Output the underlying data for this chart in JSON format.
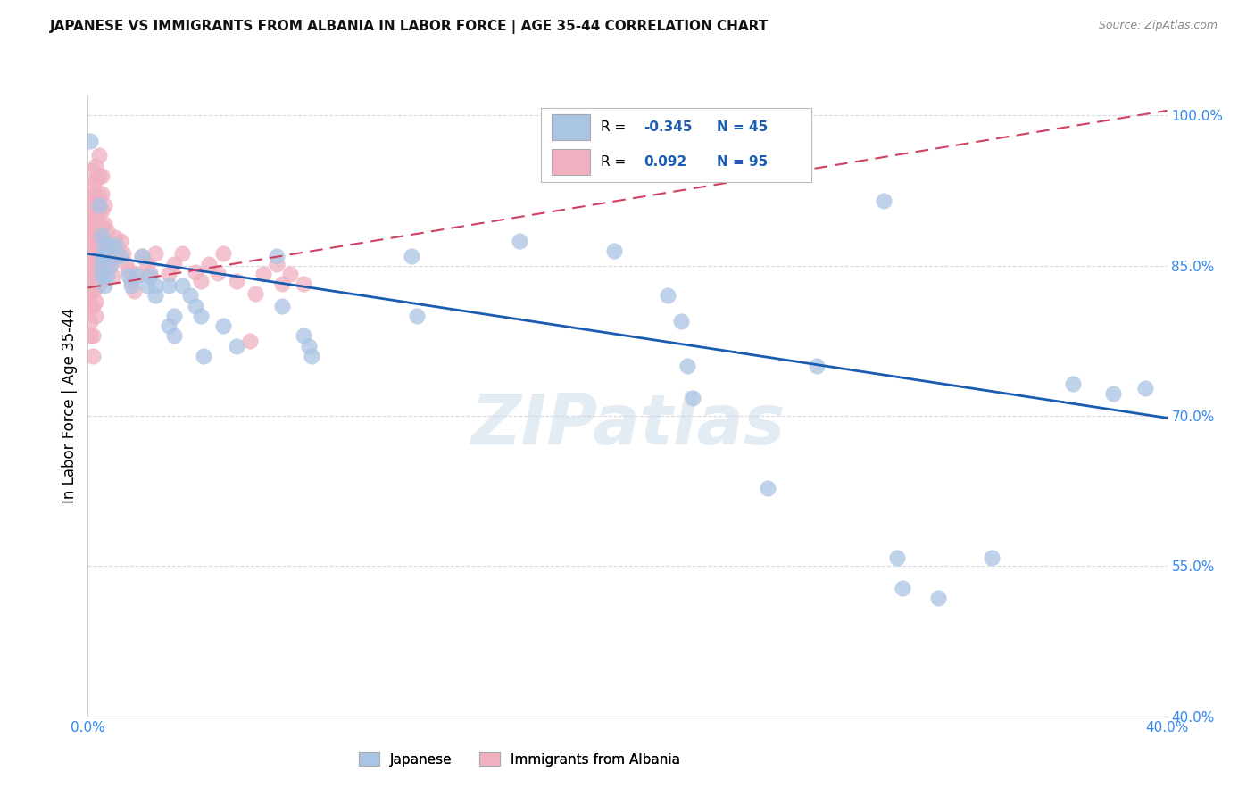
{
  "title": "JAPANESE VS IMMIGRANTS FROM ALBANIA IN LABOR FORCE | AGE 35-44 CORRELATION CHART",
  "source": "Source: ZipAtlas.com",
  "ylabel": "In Labor Force | Age 35-44",
  "xlim": [
    0.0,
    0.4
  ],
  "ylim": [
    0.4,
    1.02
  ],
  "yticks": [
    0.4,
    0.55,
    0.7,
    0.85,
    1.0
  ],
  "background_color": "#ffffff",
  "grid_color": "#d8d8e8",
  "japanese_color": "#aac4e4",
  "albania_color": "#f0b0c0",
  "japanese_line_color": "#1a5cb0",
  "albania_line_color": "#d04060",
  "jp_line": [
    [
      0.0,
      0.862
    ],
    [
      0.4,
      0.698
    ]
  ],
  "al_line": [
    [
      0.0,
      0.828
    ],
    [
      0.4,
      1.005
    ]
  ],
  "japanese_points": [
    [
      0.001,
      0.975
    ],
    [
      0.004,
      0.91
    ],
    [
      0.005,
      0.88
    ],
    [
      0.005,
      0.86
    ],
    [
      0.005,
      0.84
    ],
    [
      0.005,
      0.85
    ],
    [
      0.006,
      0.86
    ],
    [
      0.006,
      0.87
    ],
    [
      0.006,
      0.83
    ],
    [
      0.007,
      0.84
    ],
    [
      0.008,
      0.85
    ],
    [
      0.008,
      0.87
    ],
    [
      0.01,
      0.87
    ],
    [
      0.012,
      0.86
    ],
    [
      0.015,
      0.84
    ],
    [
      0.016,
      0.83
    ],
    [
      0.018,
      0.84
    ],
    [
      0.02,
      0.86
    ],
    [
      0.022,
      0.83
    ],
    [
      0.023,
      0.84
    ],
    [
      0.025,
      0.82
    ],
    [
      0.025,
      0.83
    ],
    [
      0.03,
      0.83
    ],
    [
      0.03,
      0.79
    ],
    [
      0.032,
      0.78
    ],
    [
      0.032,
      0.8
    ],
    [
      0.035,
      0.83
    ],
    [
      0.038,
      0.82
    ],
    [
      0.04,
      0.81
    ],
    [
      0.042,
      0.8
    ],
    [
      0.043,
      0.76
    ],
    [
      0.05,
      0.79
    ],
    [
      0.055,
      0.77
    ],
    [
      0.07,
      0.86
    ],
    [
      0.072,
      0.81
    ],
    [
      0.08,
      0.78
    ],
    [
      0.082,
      0.77
    ],
    [
      0.083,
      0.76
    ],
    [
      0.12,
      0.86
    ],
    [
      0.122,
      0.8
    ],
    [
      0.16,
      0.875
    ],
    [
      0.195,
      0.865
    ],
    [
      0.215,
      0.82
    ],
    [
      0.22,
      0.795
    ],
    [
      0.222,
      0.75
    ],
    [
      0.224,
      0.718
    ],
    [
      0.252,
      0.628
    ],
    [
      0.27,
      0.75
    ],
    [
      0.295,
      0.915
    ],
    [
      0.3,
      0.558
    ],
    [
      0.302,
      0.528
    ],
    [
      0.315,
      0.518
    ],
    [
      0.335,
      0.558
    ],
    [
      0.365,
      0.732
    ],
    [
      0.38,
      0.722
    ],
    [
      0.392,
      0.728
    ]
  ],
  "albania_points": [
    [
      0.0,
      0.91
    ],
    [
      0.0,
      0.895
    ],
    [
      0.001,
      0.92
    ],
    [
      0.001,
      0.9
    ],
    [
      0.001,
      0.885
    ],
    [
      0.001,
      0.87
    ],
    [
      0.001,
      0.855
    ],
    [
      0.001,
      0.84
    ],
    [
      0.001,
      0.825
    ],
    [
      0.001,
      0.81
    ],
    [
      0.001,
      0.795
    ],
    [
      0.001,
      0.78
    ],
    [
      0.002,
      0.945
    ],
    [
      0.002,
      0.93
    ],
    [
      0.002,
      0.915
    ],
    [
      0.002,
      0.9
    ],
    [
      0.002,
      0.885
    ],
    [
      0.002,
      0.87
    ],
    [
      0.002,
      0.855
    ],
    [
      0.002,
      0.84
    ],
    [
      0.002,
      0.825
    ],
    [
      0.002,
      0.81
    ],
    [
      0.002,
      0.78
    ],
    [
      0.002,
      0.76
    ],
    [
      0.003,
      0.95
    ],
    [
      0.003,
      0.935
    ],
    [
      0.003,
      0.918
    ],
    [
      0.003,
      0.9
    ],
    [
      0.003,
      0.885
    ],
    [
      0.003,
      0.87
    ],
    [
      0.003,
      0.856
    ],
    [
      0.003,
      0.842
    ],
    [
      0.003,
      0.828
    ],
    [
      0.003,
      0.814
    ],
    [
      0.003,
      0.8
    ],
    [
      0.004,
      0.96
    ],
    [
      0.004,
      0.94
    ],
    [
      0.004,
      0.92
    ],
    [
      0.004,
      0.905
    ],
    [
      0.004,
      0.888
    ],
    [
      0.004,
      0.872
    ],
    [
      0.004,
      0.858
    ],
    [
      0.004,
      0.845
    ],
    [
      0.004,
      0.832
    ],
    [
      0.005,
      0.94
    ],
    [
      0.005,
      0.922
    ],
    [
      0.005,
      0.905
    ],
    [
      0.005,
      0.89
    ],
    [
      0.005,
      0.875
    ],
    [
      0.005,
      0.862
    ],
    [
      0.006,
      0.91
    ],
    [
      0.006,
      0.892
    ],
    [
      0.006,
      0.875
    ],
    [
      0.006,
      0.858
    ],
    [
      0.007,
      0.885
    ],
    [
      0.007,
      0.87
    ],
    [
      0.007,
      0.852
    ],
    [
      0.008,
      0.868
    ],
    [
      0.008,
      0.85
    ],
    [
      0.009,
      0.858
    ],
    [
      0.009,
      0.84
    ],
    [
      0.01,
      0.878
    ],
    [
      0.01,
      0.86
    ],
    [
      0.011,
      0.868
    ],
    [
      0.012,
      0.875
    ],
    [
      0.013,
      0.862
    ],
    [
      0.014,
      0.852
    ],
    [
      0.015,
      0.845
    ],
    [
      0.016,
      0.835
    ],
    [
      0.017,
      0.825
    ],
    [
      0.018,
      0.842
    ],
    [
      0.02,
      0.86
    ],
    [
      0.022,
      0.852
    ],
    [
      0.023,
      0.843
    ],
    [
      0.025,
      0.862
    ],
    [
      0.03,
      0.842
    ],
    [
      0.032,
      0.852
    ],
    [
      0.035,
      0.862
    ],
    [
      0.04,
      0.844
    ],
    [
      0.042,
      0.835
    ],
    [
      0.045,
      0.852
    ],
    [
      0.048,
      0.843
    ],
    [
      0.05,
      0.862
    ],
    [
      0.055,
      0.835
    ],
    [
      0.06,
      0.775
    ],
    [
      0.062,
      0.822
    ],
    [
      0.065,
      0.842
    ],
    [
      0.07,
      0.852
    ],
    [
      0.072,
      0.832
    ],
    [
      0.075,
      0.842
    ],
    [
      0.08,
      0.832
    ]
  ]
}
